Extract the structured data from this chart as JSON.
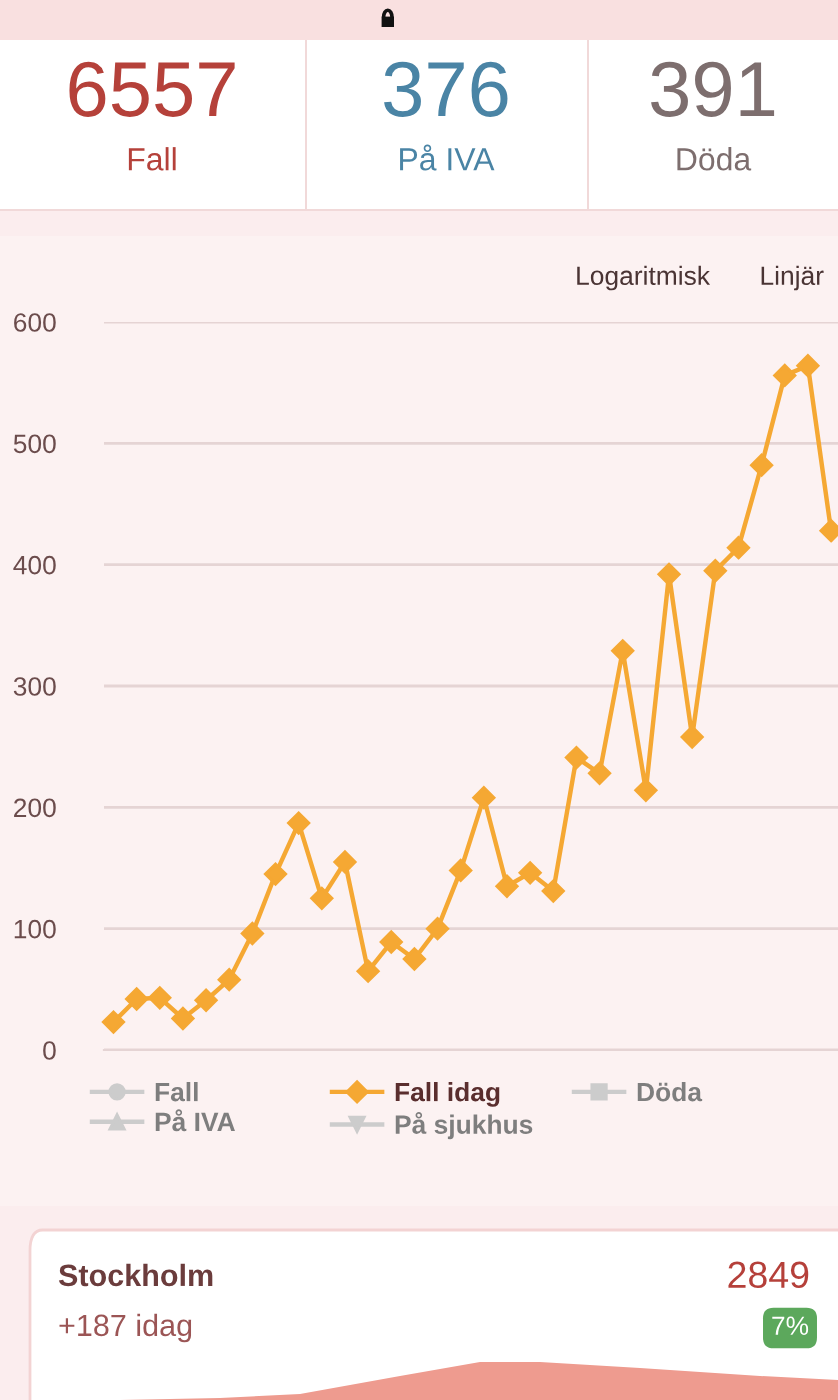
{
  "chart_data": [
    {
      "type": "other",
      "title": "6557",
      "subtitle": "Fall",
      "color": "#b5413a"
    },
    {
      "type": "other",
      "title": "376",
      "subtitle": "På IVA",
      "color": "#4a84a5"
    },
    {
      "type": "other",
      "title": "391",
      "subtitle": "Döda",
      "color": "#7d6e6e"
    },
    {
      "type": "line",
      "categories": [
        null,
        null,
        null,
        null,
        null,
        null,
        null,
        null,
        null,
        null,
        null,
        null,
        null,
        null,
        null,
        null,
        null,
        null,
        null,
        null,
        null,
        null,
        null,
        null,
        null,
        null,
        null,
        null,
        null,
        null,
        null,
        null
      ],
      "series": [
        {
          "name": "Fall",
          "color": "#cccccc",
          "marker": "circle",
          "values": [
            null,
            null,
            null,
            null,
            null,
            null,
            null,
            null,
            null,
            null,
            null,
            null,
            null,
            null,
            null,
            null,
            null,
            null,
            null,
            null,
            null,
            null,
            null,
            null,
            null,
            null,
            null,
            null,
            null,
            null,
            null,
            null
          ]
        },
        {
          "name": "Fall idag",
          "color": "#f5a833",
          "marker": "diamond",
          "values": [
            23,
            42,
            43,
            26,
            41,
            58,
            96,
            145,
            187,
            125,
            155,
            65,
            89,
            75,
            100,
            148,
            208,
            135,
            146,
            131,
            241,
            228,
            329,
            214,
            392,
            258,
            395,
            414,
            482,
            556,
            564,
            428
          ]
        },
        {
          "name": "Döda",
          "color": "#cccccc",
          "marker": "square",
          "values": [
            null,
            null,
            null,
            null,
            null,
            null,
            null,
            null,
            null,
            null,
            null,
            null,
            null,
            null,
            null,
            null,
            null,
            null,
            null,
            null,
            null,
            null,
            null,
            null,
            null,
            null,
            null,
            null,
            null,
            null,
            null,
            null
          ]
        },
        {
          "name": "På IVA",
          "color": "#cccccc",
          "marker": "triangle",
          "values": [
            null,
            null,
            null,
            null,
            null,
            null,
            null,
            null,
            null,
            null,
            null,
            null,
            null,
            null,
            null,
            null,
            null,
            null,
            null,
            null,
            null,
            null,
            null,
            null,
            null,
            null,
            null,
            null,
            null,
            null,
            null,
            null
          ]
        },
        {
          "name": "På sjukhus",
          "color": "#cccccc",
          "marker": "triangle-down",
          "values": [
            null,
            null,
            null,
            null,
            null,
            null,
            null,
            null,
            null,
            null,
            null,
            null,
            null,
            null,
            null,
            null,
            null,
            null,
            null,
            null,
            null,
            null,
            null,
            null,
            null,
            null,
            null,
            null,
            null,
            null,
            null,
            null
          ]
        }
      ],
      "ylim": [
        0,
        600
      ],
      "yticks": [
        0,
        100,
        200,
        300,
        400,
        500,
        600
      ],
      "grid": "y",
      "legend": "bottom",
      "tick_labels": "y",
      "line_style": "solid",
      "annotations": [
        "Logaritmisk",
        "Linjär"
      ]
    },
    {
      "type": "other",
      "title": "Stockholm",
      "subtitle": "+187 idag",
      "annotations": [
        "2849",
        "7%"
      ]
    }
  ]
}
